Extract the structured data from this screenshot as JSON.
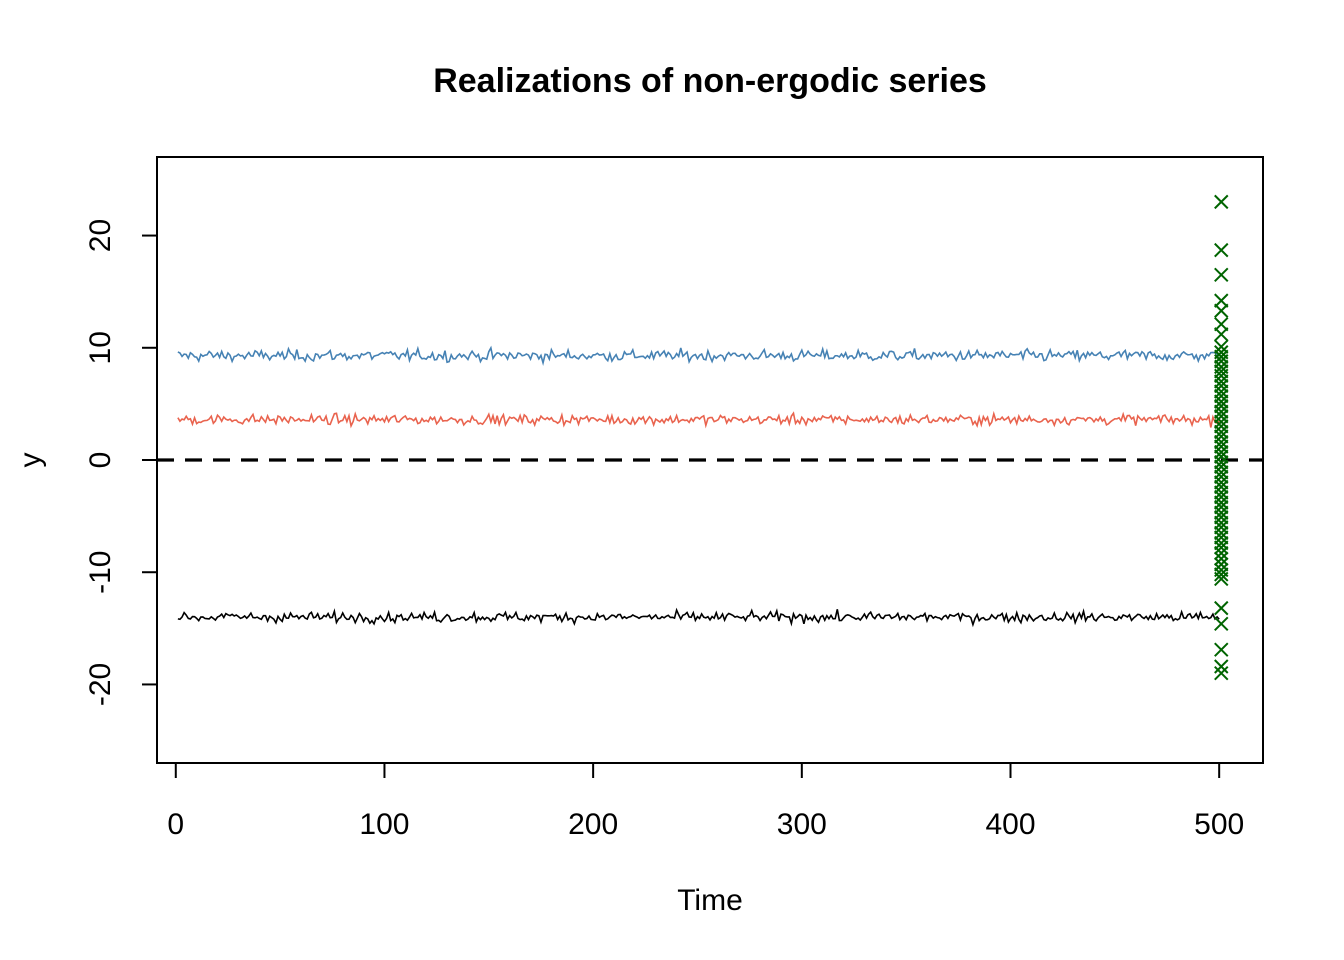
{
  "chart_data": {
    "type": "line",
    "title": "Realizations of non-ergodic series",
    "xlabel": "Time",
    "ylabel": "y",
    "xlim": [
      -9,
      521
    ],
    "ylim": [
      -27,
      27
    ],
    "x_ticks": [
      0,
      100,
      200,
      300,
      400,
      500
    ],
    "y_ticks": [
      -20,
      -10,
      0,
      10,
      20
    ],
    "x_tick_labels": [
      "0",
      "100",
      "200",
      "300",
      "400",
      "500"
    ],
    "y_tick_labels": [
      "-20",
      "-10",
      "0",
      "10",
      "20"
    ],
    "grid": false,
    "series": [
      {
        "level": 9.3,
        "noise_sd": 0.25,
        "x_start": 1,
        "x_end": 500,
        "color": "#4682B4"
      },
      {
        "level": 3.6,
        "noise_sd": 0.22,
        "x_start": 1,
        "x_end": 500,
        "color": "#E9634E"
      },
      {
        "level": -14.0,
        "noise_sd": 0.22,
        "x_start": 1,
        "x_end": 500,
        "color": "#000000"
      }
    ],
    "reference_line": {
      "y": 0,
      "style": "dashed",
      "color": "#000000"
    },
    "endpoint_markers": {
      "x": 501,
      "marker": "x",
      "color": "#006400",
      "y": [
        23.0,
        18.7,
        16.5,
        14.2,
        13.3,
        12.1,
        11.2,
        10.1,
        9.6,
        9.2,
        8.8,
        8.3,
        7.9,
        7.5,
        7.0,
        6.6,
        6.1,
        5.7,
        5.2,
        4.8,
        4.3,
        3.9,
        3.4,
        3.0,
        2.5,
        2.1,
        1.6,
        1.2,
        0.7,
        0.3,
        -0.2,
        -0.6,
        -1.1,
        -1.5,
        -2.0,
        -2.4,
        -2.9,
        -3.3,
        -3.8,
        -4.2,
        -4.7,
        -5.1,
        -5.6,
        -6.0,
        -6.5,
        -6.9,
        -7.4,
        -7.8,
        -8.3,
        -8.8,
        -9.3,
        -9.8,
        -10.2,
        -10.6,
        -13.2,
        -14.6,
        -16.9,
        -18.4,
        -19.0
      ]
    }
  }
}
